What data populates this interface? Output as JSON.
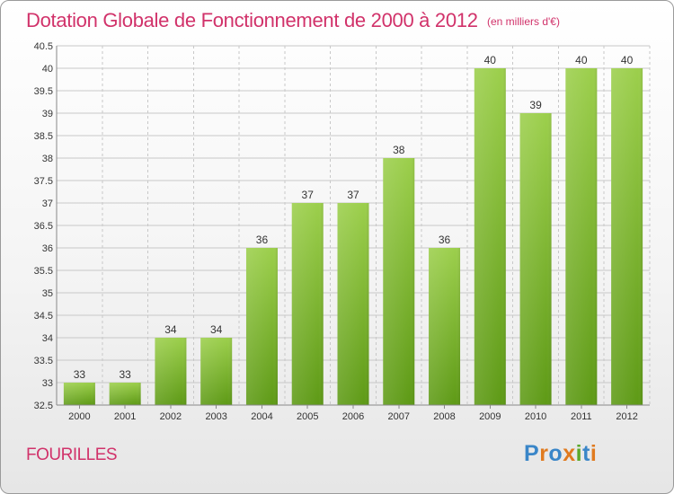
{
  "chart_data": {
    "type": "bar",
    "title": "Dotation Globale de Fonctionnement de 2000 à 2012",
    "subtitle": "(en milliers d'€)",
    "categories": [
      "2000",
      "2001",
      "2002",
      "2003",
      "2004",
      "2005",
      "2006",
      "2007",
      "2008",
      "2009",
      "2010",
      "2011",
      "2012"
    ],
    "values": [
      33,
      33,
      34,
      34,
      36,
      37,
      37,
      38,
      36,
      40,
      39,
      40,
      40
    ],
    "labels": [
      "33",
      "33",
      "34",
      "34",
      "36",
      "37",
      "37",
      "38",
      "36",
      "40",
      "39",
      "40",
      "40"
    ],
    "ylim": [
      32.5,
      40.5
    ],
    "yticks": [
      "32.5",
      "33",
      "33.5",
      "34",
      "34.5",
      "35",
      "35.5",
      "36",
      "36.5",
      "37",
      "37.5",
      "38",
      "38.5",
      "39",
      "39.5",
      "40",
      "40.5"
    ],
    "xlabel": "",
    "ylabel": "",
    "grid": true
  },
  "footer": {
    "commune": "FOURILLES",
    "logo": "Proxiti"
  },
  "colors": {
    "title": "#d1326a",
    "bar_light": "#9ccf4c",
    "bar_dark": "#5e9a16",
    "grid": "#c8c8c8"
  }
}
